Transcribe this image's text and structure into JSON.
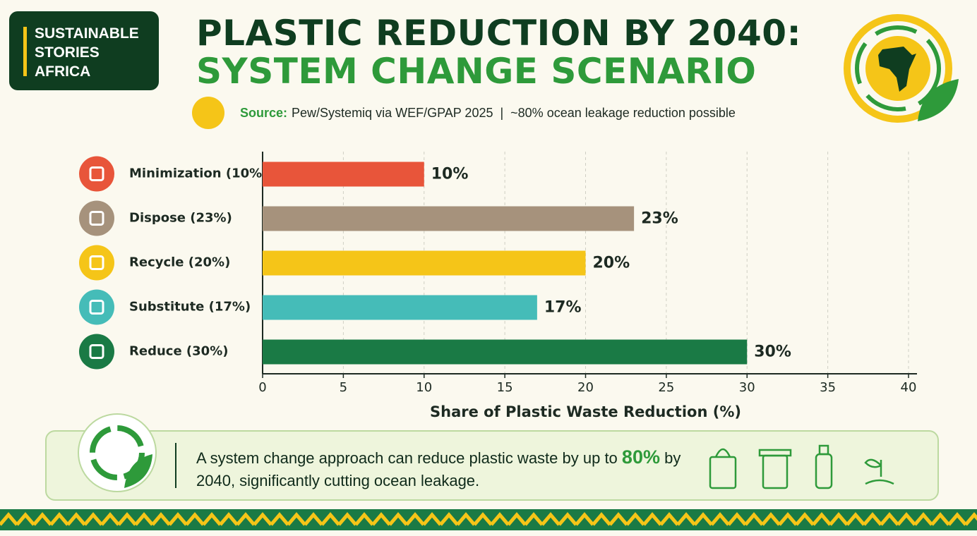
{
  "logo": {
    "lines": [
      "SUSTAINABLE",
      "STORIES",
      "AFRICA"
    ]
  },
  "chart_data": {
    "type": "bar",
    "orientation": "horizontal",
    "title": [
      "PLASTIC REDUCTION BY 2040:",
      "SYSTEM CHANGE SCENARIO"
    ],
    "source_label": "Source:",
    "source": "Pew/Systemiq via WEF/GPAP 2025  |  ~80% ocean leakage reduction possible",
    "categories": [
      "Minimization (10%)",
      "Dispose (23%)",
      "Recycle (20%)",
      "Substitute (17%)",
      "Reduce (30%)"
    ],
    "values": [
      10,
      23,
      20,
      17,
      30
    ],
    "value_labels": [
      "10%",
      "23%",
      "20%",
      "17%",
      "30%"
    ],
    "colors": [
      "#e8553a",
      "#a6927c",
      "#f5c518",
      "#45bcb8",
      "#1a7a45"
    ],
    "xlabel": "Share of Plastic Waste Reduction (%)",
    "xlim": [
      0,
      40
    ],
    "xticks": [
      0,
      5,
      10,
      15,
      20,
      25,
      30,
      35,
      40
    ],
    "grid": true
  },
  "footer": {
    "text_before": "A system change approach can reduce plastic waste by up to",
    "highlight": "80%",
    "text_after": "by 2040, significantly cutting ocean leakage."
  }
}
